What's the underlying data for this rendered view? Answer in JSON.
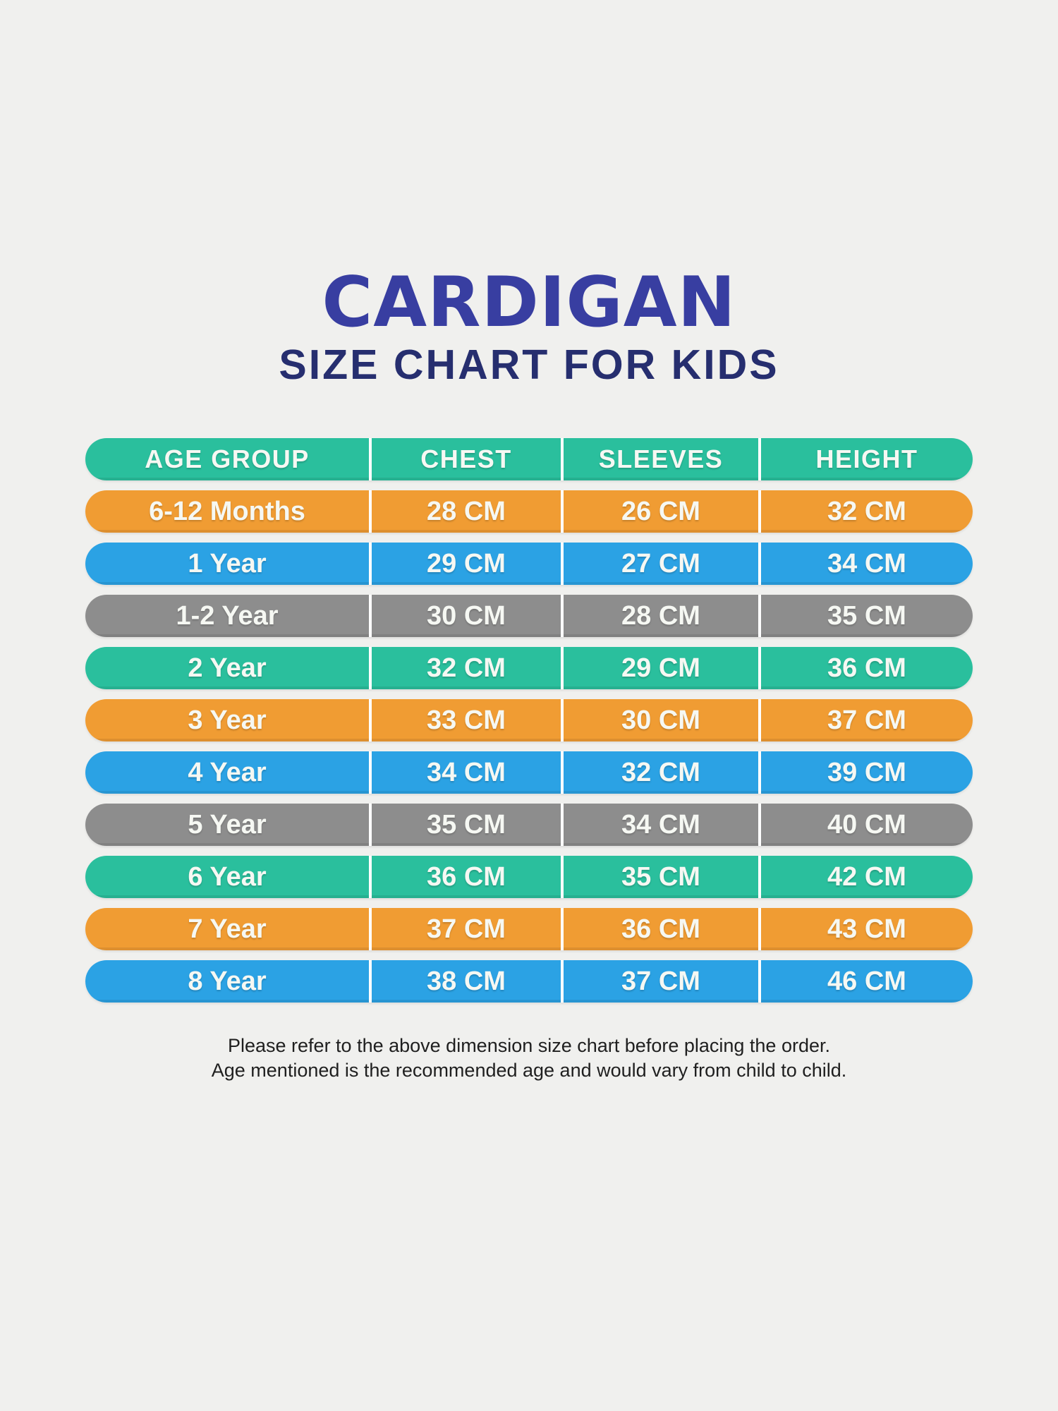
{
  "title": {
    "text": "CARDIGAN",
    "color": "#383ea1"
  },
  "subtitle": {
    "text": "SIZE CHART FOR KIDS",
    "color": "#262e6f"
  },
  "colors": {
    "background": "#f0f0ee",
    "teal": "#2abf9d",
    "orange": "#f09c33",
    "blue": "#2ba2e4",
    "gray": "#8d8d8d",
    "row_text": "#f6f8f3"
  },
  "table": {
    "header_color": "#2abf9d",
    "columns": [
      "AGE GROUP",
      "CHEST",
      "SLEEVES",
      "HEIGHT"
    ],
    "rows": [
      {
        "age": "6-12 Months",
        "chest": "28 CM",
        "sleeves": "26 CM",
        "height": "32 CM",
        "color": "#f09c33"
      },
      {
        "age": "1 Year",
        "chest": "29 CM",
        "sleeves": "27 CM",
        "height": "34 CM",
        "color": "#2ba2e4"
      },
      {
        "age": "1-2 Year",
        "chest": "30 CM",
        "sleeves": "28 CM",
        "height": "35 CM",
        "color": "#8d8d8d"
      },
      {
        "age": "2 Year",
        "chest": "32 CM",
        "sleeves": "29 CM",
        "height": "36 CM",
        "color": "#2abf9d"
      },
      {
        "age": "3 Year",
        "chest": "33 CM",
        "sleeves": "30 CM",
        "height": "37 CM",
        "color": "#f09c33"
      },
      {
        "age": "4 Year",
        "chest": "34 CM",
        "sleeves": "32 CM",
        "height": "39 CM",
        "color": "#2ba2e4"
      },
      {
        "age": "5 Year",
        "chest": "35 CM",
        "sleeves": "34 CM",
        "height": "40 CM",
        "color": "#8d8d8d"
      },
      {
        "age": "6 Year",
        "chest": "36 CM",
        "sleeves": "35 CM",
        "height": "42 CM",
        "color": "#2abf9d"
      },
      {
        "age": "7 Year",
        "chest": "37 CM",
        "sleeves": "36 CM",
        "height": "43 CM",
        "color": "#f09c33"
      },
      {
        "age": "8 Year",
        "chest": "38 CM",
        "sleeves": "37 CM",
        "height": "46 CM",
        "color": "#2ba2e4"
      }
    ]
  },
  "footer": {
    "line1": "Please refer to the above dimension size chart before placing the order.",
    "line2": "Age mentioned is the recommended age and would vary from child to child."
  },
  "chart_data": {
    "type": "table",
    "title": "CARDIGAN SIZE CHART FOR KIDS",
    "columns": [
      "AGE GROUP",
      "CHEST",
      "SLEEVES",
      "HEIGHT"
    ],
    "rows": [
      [
        "6-12 Months",
        "28 CM",
        "26 CM",
        "32 CM"
      ],
      [
        "1 Year",
        "29 CM",
        "27 CM",
        "34 CM"
      ],
      [
        "1-2 Year",
        "30 CM",
        "28 CM",
        "35 CM"
      ],
      [
        "2 Year",
        "32 CM",
        "29 CM",
        "36 CM"
      ],
      [
        "3 Year",
        "33 CM",
        "30 CM",
        "37 CM"
      ],
      [
        "4 Year",
        "34 CM",
        "32 CM",
        "39 CM"
      ],
      [
        "5 Year",
        "35 CM",
        "34 CM",
        "40 CM"
      ],
      [
        "6 Year",
        "36 CM",
        "35 CM",
        "42 CM"
      ],
      [
        "7 Year",
        "37 CM",
        "36 CM",
        "43 CM"
      ],
      [
        "8 Year",
        "38 CM",
        "37 CM",
        "46 CM"
      ]
    ],
    "units": "CM",
    "notes": [
      "Please refer to the above dimension size chart before placing the order.",
      "Age mentioned is the recommended age and would vary from child to child."
    ]
  }
}
